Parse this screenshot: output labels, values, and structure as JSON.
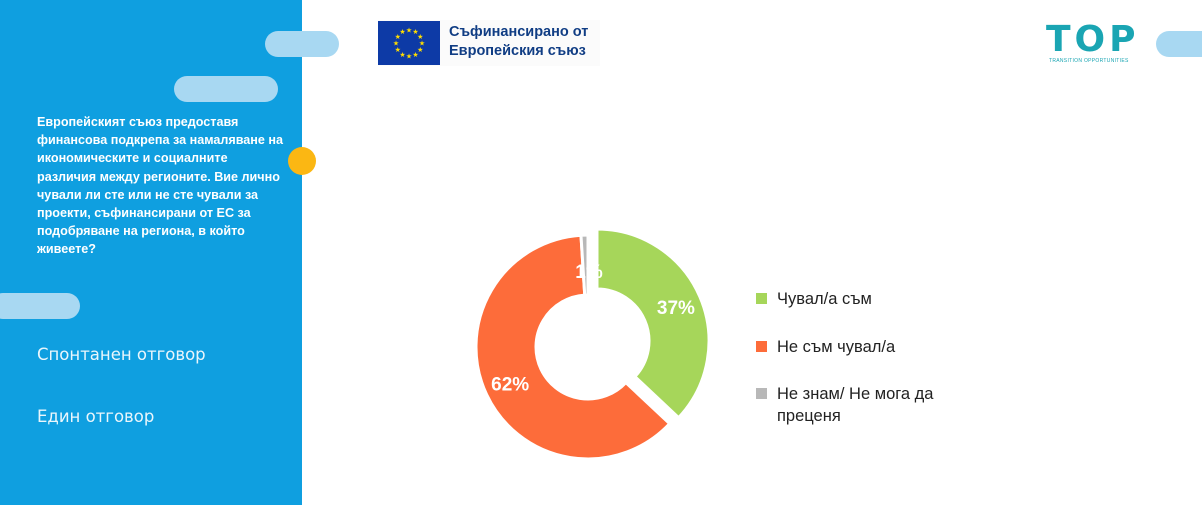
{
  "sidebar": {
    "question": "Европейският съюз предоставя финансова подкрепа за намаляване на икономическите и социалните различия между регионите. Вие лично чували ли сте или не сте чували за проекти, съфинансирани от ЕС за подобряване на региона, в който живеете?",
    "response_type": "Спонтанен отговор",
    "answer_type": "Един отговор"
  },
  "header": {
    "eu_line1": "Съфинансирано от",
    "eu_line2": "Европейския съюз",
    "logo_word": "TOP",
    "logo_tagline": "TRANSITION OPPORTUNITIES"
  },
  "colors": {
    "sidebar": "#0f9fe0",
    "accent_dot": "#fbb713",
    "heard": "#a6d65a",
    "not_heard": "#fd6c3a",
    "dont_know": "#b8b8b8"
  },
  "chart_data": {
    "type": "pie",
    "donut": true,
    "title": "",
    "categories": [
      "Чувал/а съм",
      "Не съм чувал/а",
      "Не знам/ Не мога да преценя"
    ],
    "values": [
      37,
      62,
      1
    ],
    "value_labels": [
      "37%",
      "62%",
      "1%"
    ],
    "colors": [
      "#a6d65a",
      "#fd6c3a",
      "#b8b8b8"
    ],
    "legend_position": "right"
  }
}
